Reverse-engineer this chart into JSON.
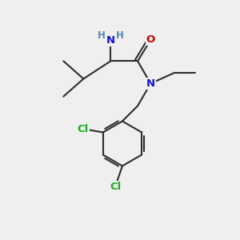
{
  "bg_color": "#efefef",
  "bond_color": "#2d2d2d",
  "bond_width": 1.5,
  "atom_colors": {
    "N": "#1414cc",
    "O": "#cc0000",
    "Cl": "#22aa22",
    "H": "#5588aa",
    "C": "#2d2d2d"
  },
  "font_size_atoms": 9.5,
  "font_size_small": 8.5
}
